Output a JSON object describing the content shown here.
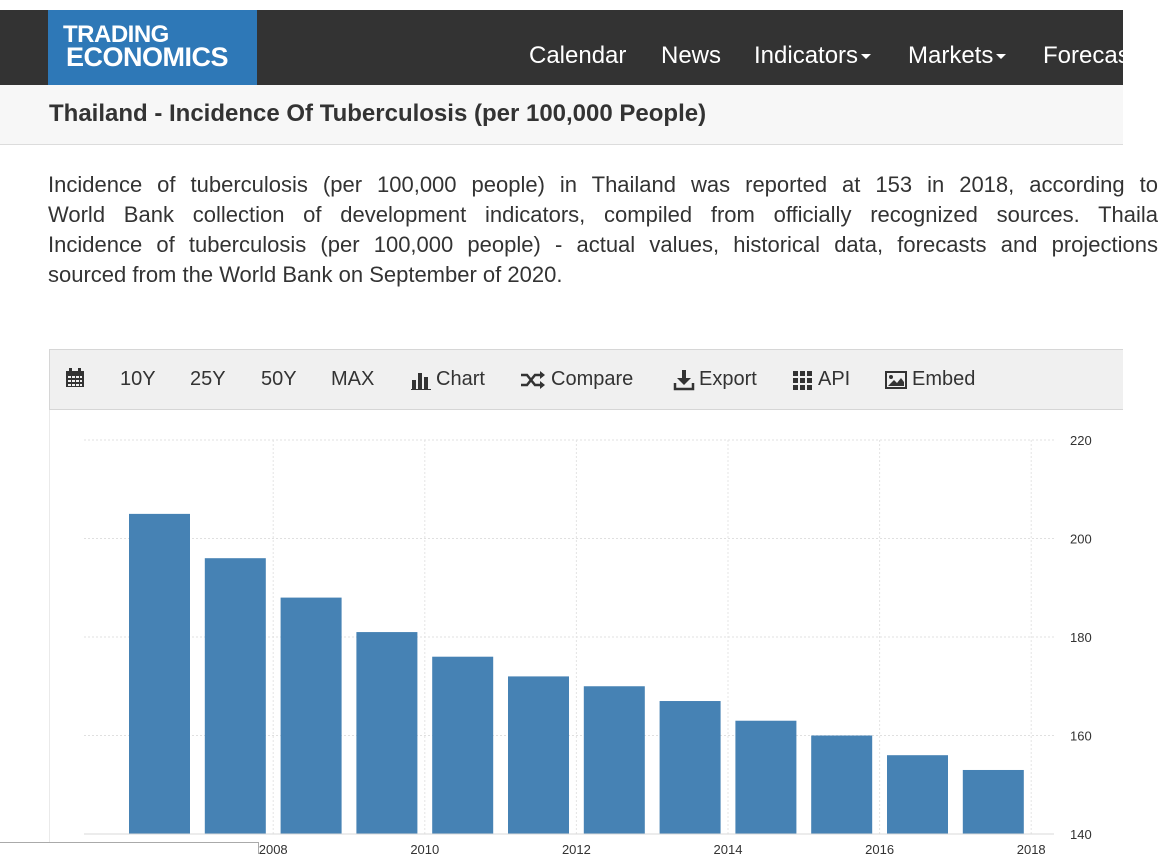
{
  "logo": {
    "line1": "TRADING",
    "line2": "ECONOMICS"
  },
  "nav": {
    "items": [
      {
        "label": "Calendar",
        "dropdown": false
      },
      {
        "label": "News",
        "dropdown": false
      },
      {
        "label": "Indicators",
        "dropdown": true
      },
      {
        "label": "Markets",
        "dropdown": true
      },
      {
        "label": "Forecas",
        "dropdown": false
      }
    ]
  },
  "page": {
    "title": "Thailand - Incidence Of Tuberculosis (per 100,000 People)",
    "description_lines": [
      "Incidence of tuberculosis (per 100,000 people) in Thailand was reported at 153 in 2018, according to",
      "World Bank collection of development indicators, compiled from officially recognized sources. Thaila",
      "Incidence of tuberculosis (per 100,000 people) - actual values, historical data, forecasts and projections",
      "sourced from the World Bank on September of 2020."
    ]
  },
  "toolbar": {
    "calendar_icon": "calendar-icon",
    "range_10y": "10Y",
    "range_25y": "25Y",
    "range_50y": "50Y",
    "range_max": "MAX",
    "chart_label": "Chart",
    "compare_label": "Compare",
    "export_label": "Export",
    "api_label": "API",
    "embed_label": "Embed"
  },
  "colors": {
    "nav_bg": "#333333",
    "logo_bg": "#2e78b7",
    "bar": "#4682b4"
  },
  "chart_data": {
    "type": "bar",
    "categories": [
      "2007",
      "2008",
      "2009",
      "2010",
      "2011",
      "2012",
      "2013",
      "2014",
      "2015",
      "2016",
      "2017",
      "2018"
    ],
    "values": [
      205,
      196,
      188,
      181,
      176,
      172,
      170,
      167,
      163,
      160,
      156,
      153
    ],
    "ylim": [
      140,
      220
    ],
    "yticks": [
      140,
      160,
      180,
      200,
      220
    ],
    "xtick_labels": [
      "2008",
      "2010",
      "2012",
      "2014",
      "2016",
      "2018"
    ],
    "grid": true,
    "y_axis_side": "right"
  }
}
